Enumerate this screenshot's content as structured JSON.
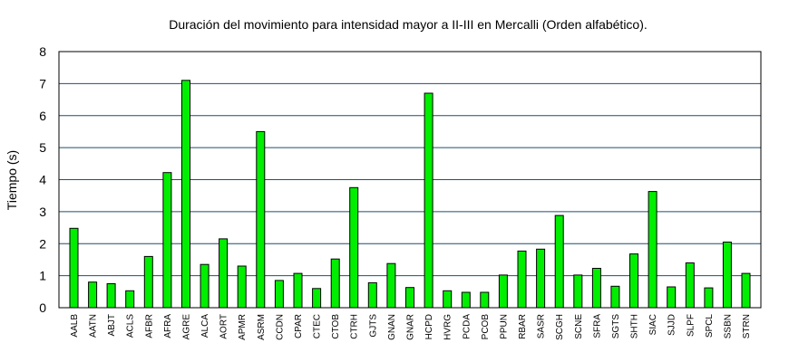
{
  "chart_data": {
    "type": "bar",
    "title": "Duración del movimiento para intensidad mayor a II-III en Mercalli (Orden alfabético).",
    "xlabel": "",
    "ylabel": "Tiempo (s)",
    "ylim": [
      0,
      8
    ],
    "yticks": [
      "0",
      "1",
      "2",
      "3",
      "4",
      "5",
      "6",
      "7",
      "8"
    ],
    "grid": true,
    "bar_color": "#00ee00",
    "categories": [
      "AALB",
      "AATN",
      "ABJT",
      "ACLS",
      "AFBR",
      "AFRA",
      "AGRE",
      "ALCA",
      "AORT",
      "APMR",
      "ASRM",
      "CCDN",
      "CPAR",
      "CTEC",
      "CTOB",
      "CTRH",
      "GJTS",
      "GNAN",
      "GNAR",
      "HCPD",
      "HVRG",
      "PCDA",
      "PCOB",
      "PPUN",
      "RBAR",
      "SASR",
      "SCGH",
      "SCNE",
      "SFRA",
      "SGTS",
      "SHTH",
      "SIAC",
      "SJJD",
      "SLPF",
      "SPCL",
      "SSBN",
      "STRN"
    ],
    "values": [
      2.48,
      0.8,
      0.75,
      0.53,
      1.6,
      4.22,
      7.1,
      1.35,
      2.15,
      1.3,
      5.5,
      0.85,
      1.07,
      0.6,
      1.52,
      3.75,
      0.78,
      1.38,
      0.63,
      6.7,
      0.53,
      0.48,
      0.48,
      1.02,
      1.77,
      1.83,
      2.88,
      1.02,
      1.23,
      0.67,
      1.68,
      3.63,
      0.65,
      1.4,
      0.62,
      2.05,
      1.07
    ]
  }
}
